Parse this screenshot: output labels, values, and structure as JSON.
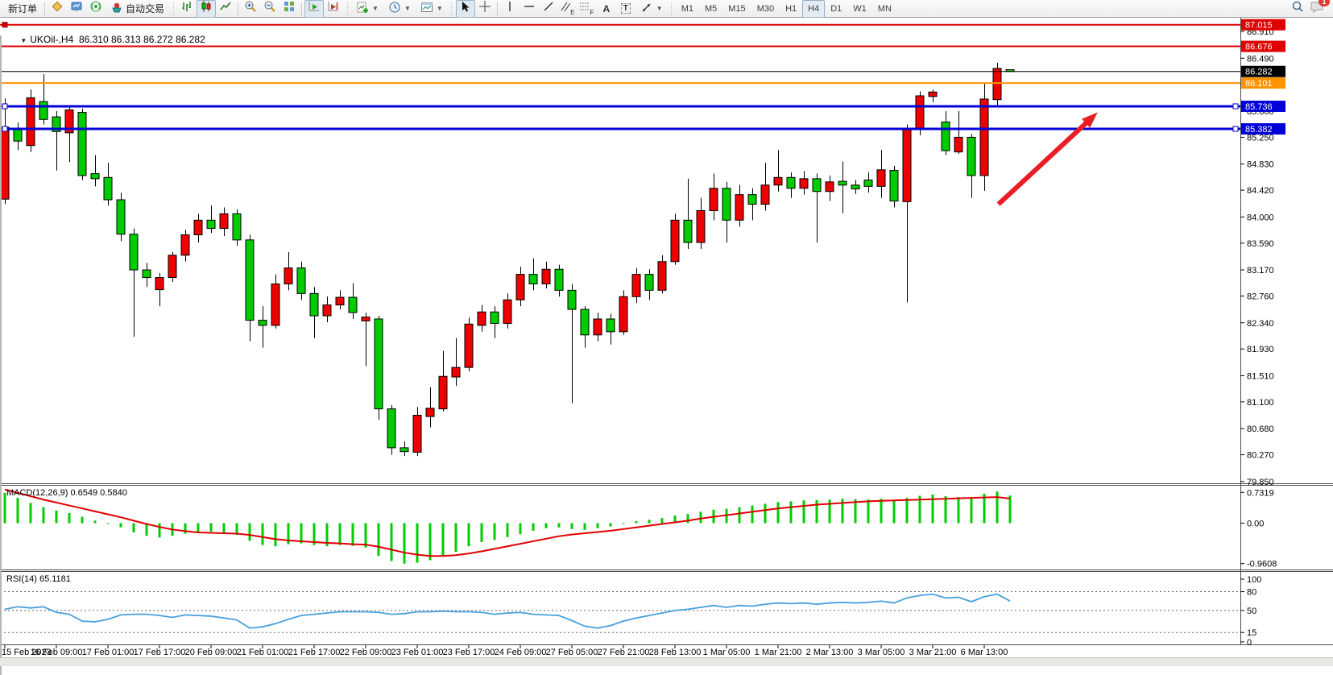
{
  "toolbar": {
    "new_order": "新订单",
    "auto_trading": "自动交易",
    "timeframes": [
      "M1",
      "M5",
      "M15",
      "M30",
      "H1",
      "H4",
      "D1",
      "W1",
      "MN"
    ],
    "active_timeframe": "H4",
    "badge_count": "1",
    "icon_glyphs": {
      "dropdown": "▼",
      "caret": "▼",
      "text": "A",
      "label": "T",
      "channel": "E",
      "fibo": "F",
      "vline": "|",
      "hline": "—",
      "tline": "/",
      "parallel": "∥",
      "dots": "⋯"
    },
    "icons": [
      "new-order",
      "market-package",
      "strategy-monitor",
      "signals",
      "auto-trading",
      "bar-chart",
      "candlestick-chart",
      "line-chart",
      "zoom-in",
      "zoom-out",
      "tile-windows",
      "auto-scroll",
      "chart-shift",
      "add-indicator",
      "periods-clock",
      "chart-template",
      "cursor",
      "crosshair",
      "vertical-line",
      "horizontal-line",
      "trendline",
      "equidistant-channel",
      "fibonacci",
      "text",
      "text-label",
      "arrows",
      "search",
      "notifications"
    ]
  },
  "chart_header": {
    "symbol_period": "UKOil-,H4",
    "ohlc": "86.310 86.313 86.272 86.282"
  },
  "chart_data": {
    "type": "candlestick",
    "symbol": "UKOil-",
    "period": "H4",
    "current_bar": {
      "open": 86.31,
      "high": 86.313,
      "low": 86.272,
      "close": 86.282
    },
    "bid": {
      "price": 86.282,
      "color": "#000000"
    },
    "layout": {
      "main_ylim": [
        79.81,
        87.1
      ],
      "macd_ylim": [
        -1.12,
        0.89
      ],
      "rsi_ylim": [
        -4,
        111.5
      ],
      "grid": false,
      "up_color": "#ee0000",
      "down_color": "#00cc00"
    },
    "price_axis_ticks": [
      "86.910",
      "86.490",
      "86.080",
      "85.660",
      "85.250",
      "84.830",
      "84.420",
      "84.000",
      "83.590",
      "83.170",
      "82.760",
      "82.340",
      "81.930",
      "81.510",
      "81.100",
      "80.680",
      "80.270",
      "79.850"
    ],
    "badges": [
      {
        "label": "87.015",
        "bg": "#e00000"
      },
      {
        "label": "86.676",
        "bg": "#e00000"
      },
      {
        "label": "86.282",
        "bg": "#000000"
      },
      {
        "label": "86.101",
        "bg": "#ff9400"
      },
      {
        "label": "85.736",
        "bg": "#0000d8"
      },
      {
        "label": "85.382",
        "bg": "#0000d8"
      }
    ],
    "hlines": [
      {
        "price": 87.015,
        "color": "#dd0000",
        "width": 2,
        "handles": "red-left"
      },
      {
        "price": 86.676,
        "color": "#dd0000",
        "width": 2,
        "handles": null
      },
      {
        "price": 86.101,
        "color": "#ff9400",
        "width": 2,
        "handles": null
      },
      {
        "price": 85.736,
        "color": "#0000d8",
        "width": 3,
        "handles": "blue-both"
      },
      {
        "price": 85.382,
        "color": "#0000d8",
        "width": 3,
        "handles": "blue-both"
      }
    ],
    "trend_arrow": {
      "from_bar": 77.1,
      "from_price": 84.2,
      "to_bar": 84.8,
      "to_price": 85.64,
      "color": "#ea1c24"
    },
    "time_labels": [
      "15 Feb 2023",
      "16 Feb 09:00",
      "17 Feb 01:00",
      "17 Feb 17:00",
      "20 Feb 09:00",
      "21 Feb 01:00",
      "21 Feb 17:00",
      "22 Feb 09:00",
      "23 Feb 01:00",
      "23 Feb 17:00",
      "24 Feb 09:00",
      "27 Feb 05:00",
      "27 Feb 21:00",
      "28 Feb 13:00",
      "1 Mar 05:00",
      "1 Mar 21:00",
      "2 Mar 13:00",
      "3 Mar 05:00",
      "3 Mar 21:00",
      "6 Mar 13:00"
    ],
    "bars_per_time_tick": 4,
    "candles": [
      [
        84.28,
        85.86,
        84.2,
        85.41
      ],
      [
        85.37,
        85.48,
        85.05,
        85.19
      ],
      [
        85.12,
        86.0,
        85.02,
        85.87
      ],
      [
        85.81,
        86.24,
        85.45,
        85.53
      ],
      [
        85.57,
        85.66,
        84.73,
        85.34
      ],
      [
        85.32,
        85.73,
        84.86,
        85.68
      ],
      [
        85.64,
        85.7,
        84.58,
        84.65
      ],
      [
        84.68,
        84.97,
        84.48,
        84.6
      ],
      [
        84.62,
        84.85,
        84.18,
        84.27
      ],
      [
        84.27,
        84.38,
        83.62,
        83.73
      ],
      [
        83.73,
        83.82,
        82.12,
        83.17
      ],
      [
        83.17,
        83.28,
        82.9,
        83.05
      ],
      [
        82.86,
        83.12,
        82.6,
        83.05
      ],
      [
        83.05,
        83.45,
        82.98,
        83.4
      ],
      [
        83.4,
        83.8,
        83.3,
        83.72
      ],
      [
        83.72,
        84.05,
        83.6,
        83.95
      ],
      [
        83.95,
        84.18,
        83.75,
        83.82
      ],
      [
        83.82,
        84.15,
        83.7,
        84.05
      ],
      [
        84.05,
        84.12,
        83.55,
        83.64
      ],
      [
        83.64,
        83.72,
        82.05,
        82.38
      ],
      [
        82.38,
        82.6,
        81.95,
        82.3
      ],
      [
        82.3,
        83.1,
        82.25,
        82.95
      ],
      [
        82.95,
        83.45,
        82.85,
        83.2
      ],
      [
        83.2,
        83.3,
        82.7,
        82.8
      ],
      [
        82.8,
        82.9,
        82.1,
        82.45
      ],
      [
        82.45,
        82.75,
        82.35,
        82.62
      ],
      [
        82.62,
        82.85,
        82.55,
        82.74
      ],
      [
        82.74,
        82.96,
        82.4,
        82.5
      ],
      [
        82.37,
        82.5,
        81.66,
        82.43
      ],
      [
        82.4,
        82.45,
        80.82,
        80.99
      ],
      [
        80.99,
        81.05,
        80.27,
        80.38
      ],
      [
        80.38,
        80.48,
        80.25,
        80.32
      ],
      [
        80.31,
        81.02,
        80.25,
        80.89
      ],
      [
        80.87,
        81.33,
        80.7,
        81.0
      ],
      [
        80.99,
        81.9,
        80.95,
        81.5
      ],
      [
        81.49,
        82.1,
        81.35,
        81.64
      ],
      [
        81.64,
        82.42,
        81.58,
        82.32
      ],
      [
        82.3,
        82.62,
        82.2,
        82.51
      ],
      [
        82.51,
        82.6,
        82.1,
        82.33
      ],
      [
        82.33,
        82.8,
        82.25,
        82.7
      ],
      [
        82.7,
        83.22,
        82.6,
        83.1
      ],
      [
        83.1,
        83.35,
        82.85,
        82.95
      ],
      [
        82.95,
        83.3,
        82.88,
        83.18
      ],
      [
        83.18,
        83.25,
        82.75,
        82.85
      ],
      [
        82.85,
        82.95,
        81.08,
        82.55
      ],
      [
        82.55,
        82.6,
        81.95,
        82.15
      ],
      [
        82.15,
        82.5,
        82.05,
        82.4
      ],
      [
        82.4,
        82.48,
        82.0,
        82.2
      ],
      [
        82.2,
        82.85,
        82.15,
        82.75
      ],
      [
        82.75,
        83.2,
        82.65,
        83.1
      ],
      [
        83.1,
        83.18,
        82.7,
        82.85
      ],
      [
        82.85,
        83.4,
        82.8,
        83.3
      ],
      [
        83.3,
        84.05,
        83.25,
        83.95
      ],
      [
        83.95,
        84.6,
        83.5,
        83.6
      ],
      [
        83.6,
        84.3,
        83.5,
        84.1
      ],
      [
        84.1,
        84.68,
        83.95,
        84.45
      ],
      [
        84.45,
        84.55,
        83.6,
        83.95
      ],
      [
        83.95,
        84.5,
        83.85,
        84.35
      ],
      [
        84.35,
        84.45,
        83.95,
        84.2
      ],
      [
        84.2,
        84.85,
        84.1,
        84.5
      ],
      [
        84.5,
        85.05,
        84.4,
        84.62
      ],
      [
        84.62,
        84.7,
        84.3,
        84.45
      ],
      [
        84.45,
        84.72,
        84.35,
        84.6
      ],
      [
        84.6,
        84.68,
        83.6,
        84.4
      ],
      [
        84.4,
        84.65,
        84.25,
        84.55
      ],
      [
        84.56,
        84.87,
        84.06,
        84.5
      ],
      [
        84.5,
        84.58,
        84.36,
        84.44
      ],
      [
        84.58,
        84.7,
        84.38,
        84.48
      ],
      [
        84.48,
        85.05,
        84.3,
        84.74
      ],
      [
        84.73,
        84.8,
        84.15,
        84.25
      ],
      [
        84.24,
        85.45,
        82.66,
        85.39
      ],
      [
        85.39,
        85.97,
        85.28,
        85.9
      ],
      [
        85.89,
        86.0,
        85.8,
        85.96
      ],
      [
        85.49,
        85.66,
        84.97,
        85.04
      ],
      [
        85.02,
        85.66,
        84.99,
        85.25
      ],
      [
        85.25,
        85.3,
        84.3,
        84.65
      ],
      [
        84.65,
        86.1,
        84.41,
        85.85
      ],
      [
        85.84,
        86.42,
        85.72,
        86.33
      ],
      [
        86.31,
        86.313,
        86.272,
        86.282
      ]
    ],
    "indicators": {
      "macd": {
        "label": "MACD(12,26,9) 0.6549 0.5840",
        "current_macd": 0.6549,
        "current_signal": 0.584,
        "axis_ticks": [
          "0.7319",
          "0.00",
          "-0.9608"
        ],
        "histogram_color": "#00cc00",
        "signal_color": "#e00000",
        "values": [
          0.72,
          0.6,
          0.48,
          0.38,
          0.3,
          0.24,
          0.15,
          0.06,
          -0.02,
          -0.1,
          -0.22,
          -0.3,
          -0.34,
          -0.3,
          -0.25,
          -0.22,
          -0.2,
          -0.22,
          -0.28,
          -0.42,
          -0.52,
          -0.55,
          -0.5,
          -0.48,
          -0.52,
          -0.55,
          -0.52,
          -0.54,
          -0.58,
          -0.78,
          -0.9,
          -0.96,
          -0.94,
          -0.88,
          -0.78,
          -0.68,
          -0.55,
          -0.45,
          -0.4,
          -0.33,
          -0.26,
          -0.18,
          -0.12,
          -0.1,
          -0.14,
          -0.16,
          -0.12,
          -0.08,
          -0.02,
          0.05,
          0.08,
          0.12,
          0.18,
          0.22,
          0.27,
          0.32,
          0.34,
          0.38,
          0.42,
          0.46,
          0.5,
          0.52,
          0.54,
          0.55,
          0.56,
          0.58,
          0.57,
          0.56,
          0.58,
          0.55,
          0.6,
          0.65,
          0.68,
          0.64,
          0.62,
          0.6,
          0.7,
          0.75,
          0.655
        ],
        "signal": [
          0.8,
          0.72,
          0.64,
          0.56,
          0.49,
          0.42,
          0.35,
          0.28,
          0.21,
          0.14,
          0.06,
          -0.02,
          -0.09,
          -0.15,
          -0.19,
          -0.22,
          -0.23,
          -0.24,
          -0.25,
          -0.28,
          -0.33,
          -0.38,
          -0.41,
          -0.43,
          -0.45,
          -0.47,
          -0.48,
          -0.5,
          -0.51,
          -0.56,
          -0.63,
          -0.7,
          -0.75,
          -0.78,
          -0.78,
          -0.76,
          -0.72,
          -0.67,
          -0.61,
          -0.55,
          -0.49,
          -0.43,
          -0.37,
          -0.31,
          -0.27,
          -0.24,
          -0.21,
          -0.18,
          -0.14,
          -0.1,
          -0.06,
          -0.02,
          0.02,
          0.06,
          0.11,
          0.15,
          0.19,
          0.23,
          0.27,
          0.31,
          0.35,
          0.38,
          0.41,
          0.44,
          0.46,
          0.48,
          0.5,
          0.52,
          0.53,
          0.54,
          0.55,
          0.56,
          0.57,
          0.58,
          0.59,
          0.6,
          0.61,
          0.62,
          0.584
        ]
      },
      "rsi": {
        "label": "RSI(14) 65.1181",
        "current": 65.1181,
        "axis_ticks": [
          "100",
          "80",
          "50",
          "15",
          "0"
        ],
        "level_lines": [
          80,
          50,
          15
        ],
        "line_color": "#46a0dd",
        "values": [
          52,
          56,
          54,
          56,
          47,
          44,
          33,
          32,
          36,
          43,
          44,
          44,
          42,
          39,
          43,
          42,
          41,
          38,
          35,
          22,
          24,
          29,
          36,
          42,
          44,
          46,
          48,
          48,
          48,
          47,
          44,
          45,
          48,
          48,
          49,
          48,
          48,
          47,
          44,
          46,
          47,
          44,
          43,
          42,
          34,
          25,
          22,
          26,
          33,
          38,
          42,
          46,
          50,
          52,
          55,
          58,
          55,
          58,
          57,
          60,
          62,
          61,
          62,
          60,
          62,
          63,
          62,
          63,
          65,
          62,
          70,
          74,
          76,
          70,
          71,
          64,
          72,
          76,
          65.1
        ]
      }
    }
  }
}
